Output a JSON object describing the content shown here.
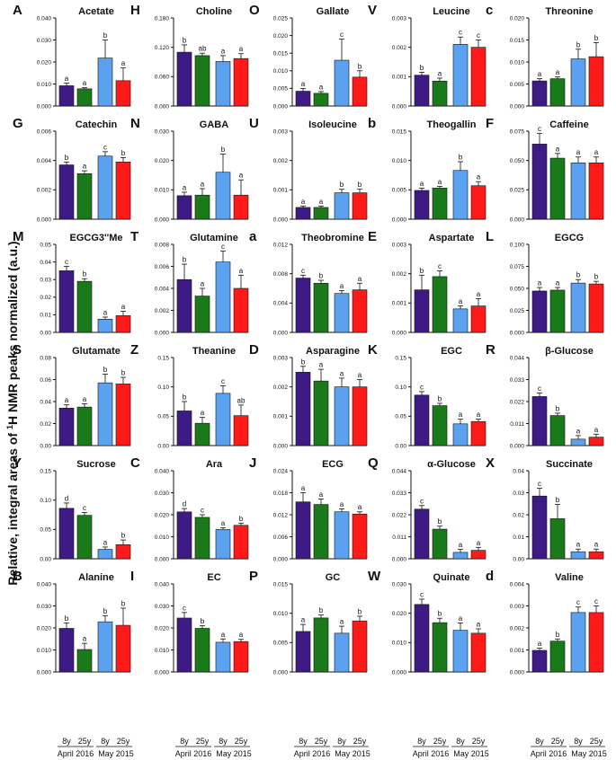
{
  "figure": {
    "y_axis_label_parts": [
      "Relative, integral areas of ",
      "1",
      "H NMR peaks normalized (a.u.)"
    ],
    "x_tick_labels": [
      "8y",
      "25y",
      "8y",
      "25y"
    ],
    "group_labels": [
      "April 2016",
      "May 2015"
    ]
  },
  "colors": {
    "8y_2016": "#3e1a85",
    "25y_2016": "#1a7a1a",
    "8y_2015": "#5aa2f0",
    "25y_2015": "#ff1a1a",
    "axis": "#111111"
  },
  "chart_data": [
    {
      "type": "bar",
      "letter": "A",
      "title": "Acetate",
      "yticks": [
        "0.000",
        "0.010",
        "0.020",
        "0.030",
        "0.040"
      ],
      "ylim": [
        0,
        0.04
      ],
      "categories": [
        "8y April 2016",
        "25y April 2016",
        "8y May 2015",
        "25y May 2015"
      ],
      "values": [
        0.0092,
        0.0078,
        0.0218,
        0.0115
      ],
      "errors": [
        0.0012,
        0.0005,
        0.0082,
        0.0058
      ],
      "significance": [
        "a",
        "a",
        "b",
        "a"
      ]
    },
    {
      "type": "bar",
      "letter": "G",
      "title": "Catechin",
      "yticks": [
        "0.000",
        "0.002",
        "0.004",
        "0.006"
      ],
      "ylim": [
        0,
        0.006
      ],
      "categories": [
        "8y April 2016",
        "25y April 2016",
        "8y May 2015",
        "25y May 2015"
      ],
      "values": [
        0.0037,
        0.0031,
        0.0043,
        0.0039
      ],
      "errors": [
        0.0002,
        0.0002,
        0.0003,
        0.0003
      ],
      "significance": [
        "b",
        "a",
        "c",
        "b"
      ]
    },
    {
      "type": "bar",
      "letter": "M",
      "title": "EGCG3''Me",
      "yticks": [
        "0.00",
        "0.01",
        "0.02",
        "0.03",
        "0.04",
        "0.05"
      ],
      "ylim": [
        0,
        0.05
      ],
      "categories": [
        "8y April 2016",
        "25y April 2016",
        "8y May 2015",
        "25y May 2015"
      ],
      "values": [
        0.035,
        0.029,
        0.0075,
        0.0095
      ],
      "errors": [
        0.0025,
        0.0015,
        0.0012,
        0.0025
      ],
      "significance": [
        "c",
        "b",
        "a",
        "a"
      ]
    },
    {
      "type": "bar",
      "letter": "S",
      "title": "Glutamate",
      "yticks": [
        "0.00",
        "0.02",
        "0.04",
        "0.06",
        "0.08"
      ],
      "ylim": [
        0,
        0.08
      ],
      "categories": [
        "8y April 2016",
        "25y April 2016",
        "8y May 2015",
        "25y May 2015"
      ],
      "values": [
        0.034,
        0.035,
        0.057,
        0.056
      ],
      "errors": [
        0.003,
        0.003,
        0.008,
        0.006
      ],
      "significance": [
        "a",
        "a",
        "b",
        "b"
      ]
    },
    {
      "type": "bar",
      "letter": "Y",
      "title": "Sucrose",
      "yticks": [
        "0.00",
        "0.05",
        "0.10",
        "0.15"
      ],
      "ylim": [
        0,
        0.15
      ],
      "categories": [
        "8y April 2016",
        "25y April 2016",
        "8y May 2015",
        "25y May 2015"
      ],
      "values": [
        0.086,
        0.074,
        0.016,
        0.024
      ],
      "errors": [
        0.009,
        0.005,
        0.004,
        0.008
      ],
      "significance": [
        "d",
        "c",
        "a",
        "b"
      ]
    },
    {
      "type": "bar",
      "letter": "B",
      "title": "Alanine",
      "yticks": [
        "0.000",
        "0.010",
        "0.020",
        "0.030",
        "0.040"
      ],
      "ylim": [
        0,
        0.04
      ],
      "categories": [
        "8y April 2016",
        "25y April 2016",
        "8y May 2015",
        "25y May 2015"
      ],
      "values": [
        0.0198,
        0.0102,
        0.0228,
        0.0212
      ],
      "errors": [
        0.0025,
        0.0028,
        0.0028,
        0.0078
      ],
      "significance": [
        "b",
        "a",
        "b",
        "b"
      ]
    },
    {
      "type": "bar",
      "letter": "H",
      "title": "Choline",
      "yticks": [
        "0.000",
        "0.060",
        "0.120",
        "0.180"
      ],
      "ylim": [
        0,
        0.18
      ],
      "categories": [
        "8y April 2016",
        "25y April 2016",
        "8y May 2015",
        "25y May 2015"
      ],
      "values": [
        0.11,
        0.103,
        0.091,
        0.097
      ],
      "errors": [
        0.015,
        0.005,
        0.012,
        0.01
      ],
      "significance": [
        "b",
        "ab",
        "a",
        "a"
      ]
    },
    {
      "type": "bar",
      "letter": "N",
      "title": "GABA",
      "yticks": [
        "0.000",
        "0.010",
        "0.020",
        "0.030"
      ],
      "ylim": [
        0,
        0.03
      ],
      "categories": [
        "8y April 2016",
        "25y April 2016",
        "8y May 2015",
        "25y May 2015"
      ],
      "values": [
        0.008,
        0.0082,
        0.016,
        0.0082
      ],
      "errors": [
        0.0012,
        0.0022,
        0.0062,
        0.0052
      ],
      "significance": [
        "a",
        "a",
        "b",
        "a"
      ]
    },
    {
      "type": "bar",
      "letter": "T",
      "title": "Glutamine",
      "yticks": [
        "0.000",
        "0.002",
        "0.004",
        "0.006",
        "0.008"
      ],
      "ylim": [
        0,
        0.008
      ],
      "categories": [
        "8y April 2016",
        "25y April 2016",
        "8y May 2015",
        "25y May 2015"
      ],
      "values": [
        0.0048,
        0.0033,
        0.0064,
        0.004
      ],
      "errors": [
        0.0014,
        0.0007,
        0.001,
        0.0012
      ],
      "significance": [
        "b",
        "a",
        "c",
        "a"
      ]
    },
    {
      "type": "bar",
      "letter": "Z",
      "title": "Theanine",
      "yticks": [
        "0.00",
        "0.05",
        "0.10",
        "0.15"
      ],
      "ylim": [
        0,
        0.15
      ],
      "categories": [
        "8y April 2016",
        "25y April 2016",
        "8y May 2015",
        "25y May 2015"
      ],
      "values": [
        0.059,
        0.038,
        0.089,
        0.051
      ],
      "errors": [
        0.016,
        0.01,
        0.013,
        0.018
      ],
      "significance": [
        "b",
        "a",
        "c",
        "ab"
      ]
    },
    {
      "type": "bar",
      "letter": "C",
      "title": "Ara",
      "yticks": [
        "0.000",
        "0.010",
        "0.020",
        "0.030",
        "0.040"
      ],
      "ylim": [
        0,
        0.04
      ],
      "categories": [
        "8y April 2016",
        "25y April 2016",
        "8y May 2015",
        "25y May 2015"
      ],
      "values": [
        0.0213,
        0.0188,
        0.0133,
        0.0152
      ],
      "errors": [
        0.0015,
        0.0012,
        0.0008,
        0.001
      ],
      "significance": [
        "d",
        "c",
        "a",
        "b"
      ]
    },
    {
      "type": "bar",
      "letter": "I",
      "title": "EC",
      "yticks": [
        "0.000",
        "0.010",
        "0.020",
        "0.030",
        "0.040"
      ],
      "ylim": [
        0,
        0.04
      ],
      "categories": [
        "8y April 2016",
        "25y April 2016",
        "8y May 2015",
        "25y May 2015"
      ],
      "values": [
        0.0245,
        0.0198,
        0.0135,
        0.0138
      ],
      "errors": [
        0.0025,
        0.0012,
        0.0015,
        0.001
      ],
      "significance": [
        "c",
        "b",
        "a",
        "a"
      ]
    },
    {
      "type": "bar",
      "letter": "O",
      "title": "Gallate",
      "yticks": [
        "0.000",
        "0.005",
        "0.010",
        "0.015",
        "0.020",
        "0.025"
      ],
      "ylim": [
        0,
        0.025
      ],
      "categories": [
        "8y April 2016",
        "25y April 2016",
        "8y May 2015",
        "25y May 2015"
      ],
      "values": [
        0.0042,
        0.0036,
        0.013,
        0.0082
      ],
      "errors": [
        0.0008,
        0.0005,
        0.006,
        0.0018
      ],
      "significance": [
        "a",
        "a",
        "c",
        "b"
      ]
    },
    {
      "type": "bar",
      "letter": "U",
      "title": "Isoleucine",
      "yticks": [
        "0.000",
        "0.001",
        "0.002",
        "0.003"
      ],
      "ylim": [
        0,
        0.003
      ],
      "categories": [
        "8y April 2016",
        "25y April 2016",
        "8y May 2015",
        "25y May 2015"
      ],
      "values": [
        0.0004,
        0.0004,
        0.0009,
        0.0009
      ],
      "errors": [
        5e-05,
        5e-05,
        0.00012,
        0.00012
      ],
      "significance": [
        "a",
        "a",
        "b",
        "b"
      ]
    },
    {
      "type": "bar",
      "letter": "a",
      "title": "Theobromine",
      "yticks": [
        "0.000",
        "0.004",
        "0.008",
        "0.012"
      ],
      "ylim": [
        0,
        0.012
      ],
      "categories": [
        "8y April 2016",
        "25y April 2016",
        "8y May 2015",
        "25y May 2015"
      ],
      "values": [
        0.0074,
        0.0067,
        0.0053,
        0.0058
      ],
      "errors": [
        0.0004,
        0.0004,
        0.0004,
        0.0009
      ],
      "significance": [
        "c",
        "b",
        "a",
        "a"
      ]
    },
    {
      "type": "bar",
      "letter": "D",
      "title": "Asparagine",
      "yticks": [
        "0.000",
        "0.001",
        "0.002",
        "0.003"
      ],
      "ylim": [
        0,
        0.003
      ],
      "categories": [
        "8y April 2016",
        "25y April 2016",
        "8y May 2015",
        "25y May 2015"
      ],
      "values": [
        0.0025,
        0.0022,
        0.002,
        0.002
      ],
      "errors": [
        0.0002,
        0.0004,
        0.0003,
        0.00025
      ],
      "significance": [
        "b",
        "a",
        "a",
        "a"
      ]
    },
    {
      "type": "bar",
      "letter": "J",
      "title": "ECG",
      "yticks": [
        "0.000",
        "0.006",
        "0.012",
        "0.018",
        "0.024"
      ],
      "ylim": [
        0,
        0.024
      ],
      "categories": [
        "8y April 2016",
        "25y April 2016",
        "8y May 2015",
        "25y May 2015"
      ],
      "values": [
        0.0155,
        0.0148,
        0.0128,
        0.0122
      ],
      "errors": [
        0.0025,
        0.0015,
        0.0008,
        0.0006
      ],
      "significance": [
        "a",
        "a",
        "a",
        "a"
      ]
    },
    {
      "type": "bar",
      "letter": "P",
      "title": "GC",
      "yticks": [
        "0.000",
        "0.005",
        "0.010",
        "0.015"
      ],
      "ylim": [
        0,
        0.015
      ],
      "categories": [
        "8y April 2016",
        "25y April 2016",
        "8y May 2015",
        "25y May 2015"
      ],
      "values": [
        0.0069,
        0.0092,
        0.0066,
        0.0087
      ],
      "errors": [
        0.0012,
        0.0005,
        0.0012,
        0.0008
      ],
      "significance": [
        "a",
        "b",
        "a",
        "b"
      ]
    },
    {
      "type": "bar",
      "letter": "V",
      "title": "Leucine",
      "yticks": [
        "0.000",
        "0.001",
        "0.002",
        "0.003"
      ],
      "ylim": [
        0,
        0.003
      ],
      "categories": [
        "8y April 2016",
        "25y April 2016",
        "8y May 2015",
        "25y May 2015"
      ],
      "values": [
        0.00105,
        0.00085,
        0.0021,
        0.002
      ],
      "errors": [
        0.0001,
        0.0001,
        0.00025,
        0.00025
      ],
      "significance": [
        "b",
        "a",
        "c",
        "c"
      ]
    },
    {
      "type": "bar",
      "letter": "b",
      "title": "Theogallin",
      "yticks": [
        "0.000",
        "0.005",
        "0.010",
        "0.015"
      ],
      "ylim": [
        0,
        0.015
      ],
      "categories": [
        "8y April 2016",
        "25y April 2016",
        "8y May 2015",
        "25y May 2015"
      ],
      "values": [
        0.0049,
        0.0053,
        0.0083,
        0.0057
      ],
      "errors": [
        0.0004,
        0.0003,
        0.0015,
        0.0007
      ],
      "significance": [
        "a",
        "a",
        "b",
        "a"
      ]
    },
    {
      "type": "bar",
      "letter": "E",
      "title": "Aspartate",
      "yticks": [
        "0.000",
        "0.001",
        "0.002",
        "0.003"
      ],
      "ylim": [
        0,
        0.003
      ],
      "categories": [
        "8y April 2016",
        "25y April 2016",
        "8y May 2015",
        "25y May 2015"
      ],
      "values": [
        0.00145,
        0.0019,
        0.0008,
        0.0009
      ],
      "errors": [
        0.0005,
        0.0002,
        0.0001,
        0.00025
      ],
      "significance": [
        "b",
        "c",
        "a",
        "a"
      ]
    },
    {
      "type": "bar",
      "letter": "K",
      "title": "EGC",
      "yticks": [
        "0.00",
        "0.05",
        "0.10",
        "0.15"
      ],
      "ylim": [
        0,
        0.15
      ],
      "categories": [
        "8y April 2016",
        "25y April 2016",
        "8y May 2015",
        "25y May 2015"
      ],
      "values": [
        0.086,
        0.068,
        0.037,
        0.041
      ],
      "errors": [
        0.006,
        0.004,
        0.008,
        0.004
      ],
      "significance": [
        "c",
        "b",
        "a",
        "a"
      ]
    },
    {
      "type": "bar",
      "letter": "Q",
      "title": "α-Glucose",
      "yticks": [
        "0.000",
        "0.011",
        "0.022",
        "0.033",
        "0.044"
      ],
      "ylim": [
        0,
        0.044
      ],
      "categories": [
        "8y April 2016",
        "25y April 2016",
        "8y May 2015",
        "25y May 2015"
      ],
      "values": [
        0.0248,
        0.0148,
        0.0032,
        0.0042
      ],
      "errors": [
        0.0018,
        0.0015,
        0.0015,
        0.0015
      ],
      "significance": [
        "c",
        "b",
        "a",
        "a"
      ]
    },
    {
      "type": "bar",
      "letter": "W",
      "title": "Quinate",
      "yticks": [
        "0.000",
        "0.010",
        "0.020",
        "0.030"
      ],
      "ylim": [
        0,
        0.03
      ],
      "categories": [
        "8y April 2016",
        "25y April 2016",
        "8y May 2015",
        "25y May 2015"
      ],
      "values": [
        0.023,
        0.0168,
        0.0142,
        0.0132
      ],
      "errors": [
        0.0018,
        0.0015,
        0.0025,
        0.0015
      ],
      "significance": [
        "c",
        "b",
        "a",
        "a"
      ]
    },
    {
      "type": "bar",
      "letter": "c",
      "title": "Threonine",
      "yticks": [
        "0.000",
        "0.005",
        "0.010",
        "0.015",
        "0.020"
      ],
      "ylim": [
        0,
        0.02
      ],
      "categories": [
        "8y April 2016",
        "25y April 2016",
        "8y May 2015",
        "25y May 2015"
      ],
      "values": [
        0.0057,
        0.0062,
        0.0107,
        0.0112
      ],
      "errors": [
        0.0005,
        0.0004,
        0.0022,
        0.0032
      ],
      "significance": [
        "a",
        "a",
        "b",
        "b"
      ]
    },
    {
      "type": "bar",
      "letter": "F",
      "title": "Caffeine",
      "yticks": [
        "0.000",
        "0.025",
        "0.050",
        "0.075"
      ],
      "ylim": [
        0,
        0.075
      ],
      "categories": [
        "8y April 2016",
        "25y April 2016",
        "8y May 2015",
        "25y May 2015"
      ],
      "values": [
        0.064,
        0.052,
        0.048,
        0.048
      ],
      "errors": [
        0.009,
        0.004,
        0.005,
        0.005
      ],
      "significance": [
        "c",
        "a",
        "a",
        "a"
      ]
    },
    {
      "type": "bar",
      "letter": "L",
      "title": "EGCG",
      "yticks": [
        "0.000",
        "0.025",
        "0.050",
        "0.075",
        "0.100"
      ],
      "ylim": [
        0,
        0.1
      ],
      "categories": [
        "8y April 2016",
        "25y April 2016",
        "8y May 2015",
        "25y May 2015"
      ],
      "values": [
        0.047,
        0.048,
        0.056,
        0.055
      ],
      "errors": [
        0.004,
        0.003,
        0.004,
        0.003
      ],
      "significance": [
        "a",
        "a",
        "b",
        "b"
      ]
    },
    {
      "type": "bar",
      "letter": "R",
      "title": "β-Glucose",
      "yticks": [
        "0.000",
        "0.011",
        "0.022",
        "0.033",
        "0.044"
      ],
      "ylim": [
        0,
        0.044
      ],
      "categories": [
        "8y April 2016",
        "25y April 2016",
        "8y May 2015",
        "25y May 2015"
      ],
      "values": [
        0.0245,
        0.015,
        0.0032,
        0.0042
      ],
      "errors": [
        0.0018,
        0.0012,
        0.0018,
        0.0015
      ],
      "significance": [
        "c",
        "b",
        "a",
        "a"
      ]
    },
    {
      "type": "bar",
      "letter": "X",
      "title": "Succinate",
      "yticks": [
        "0.00",
        "0.01",
        "0.02",
        "0.03",
        "0.04"
      ],
      "ylim": [
        0,
        0.04
      ],
      "categories": [
        "8y April 2016",
        "25y April 2016",
        "8y May 2015",
        "25y May 2015"
      ],
      "values": [
        0.0285,
        0.0182,
        0.0032,
        0.0032
      ],
      "errors": [
        0.0035,
        0.0065,
        0.0012,
        0.0012
      ],
      "significance": [
        "c",
        "b",
        "a",
        "a"
      ]
    },
    {
      "type": "bar",
      "letter": "d",
      "title": "Valine",
      "yticks": [
        "0.000",
        "0.001",
        "0.002",
        "0.003",
        "0.004"
      ],
      "ylim": [
        0,
        0.004
      ],
      "categories": [
        "8y April 2016",
        "25y April 2016",
        "8y May 2015",
        "25y May 2015"
      ],
      "values": [
        0.00098,
        0.0014,
        0.0027,
        0.0027
      ],
      "errors": [
        0.0001,
        0.0001,
        0.00025,
        0.0003
      ],
      "significance": [
        "a",
        "b",
        "c",
        "c"
      ]
    }
  ]
}
